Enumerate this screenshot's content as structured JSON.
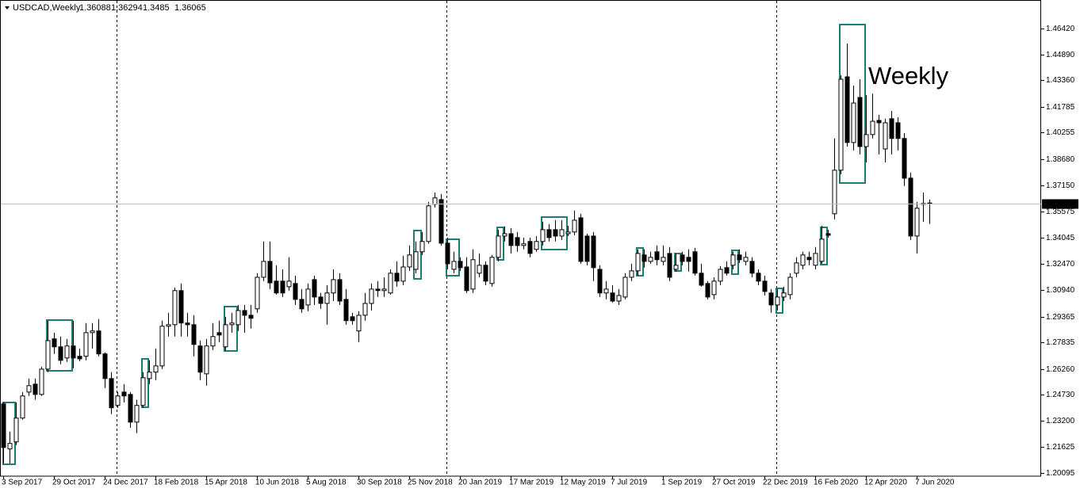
{
  "chart_data": {
    "type": "candlestick",
    "title": "USDCAD,Weekly",
    "annotation": "Weekly",
    "up_color": "#ffffff",
    "down_color": "#000000",
    "wick_color": "#000000",
    "annotation_color": "#1a7a1a",
    "ylim": [
      1.1991,
      1.4797
    ],
    "yticks": [
      {
        "value": 1.20095,
        "label": "1.20095"
      },
      {
        "value": 1.21625,
        "label": "1.21625"
      },
      {
        "value": 1.232,
        "label": "1.23200"
      },
      {
        "value": 1.2473,
        "label": "1.24730"
      },
      {
        "value": 1.2626,
        "label": "1.26260"
      },
      {
        "value": 1.27835,
        "label": "1.27835"
      },
      {
        "value": 1.29365,
        "label": "1.29365"
      },
      {
        "value": 1.3094,
        "label": "1.30940"
      },
      {
        "value": 1.3247,
        "label": "1.32470"
      },
      {
        "value": 1.34045,
        "label": "1.34045"
      },
      {
        "value": 1.35575,
        "label": "1.35575"
      },
      {
        "value": 1.3715,
        "label": "1.37150"
      },
      {
        "value": 1.3868,
        "label": "1.38680"
      },
      {
        "value": 1.40255,
        "label": "1.40255"
      },
      {
        "value": 1.41785,
        "label": "1.41785"
      },
      {
        "value": 1.4336,
        "label": "1.43360"
      },
      {
        "value": 1.4489,
        "label": "1.44890"
      },
      {
        "value": 1.4642,
        "label": "1.46420"
      }
    ],
    "categories": [
      "3 Sep 2017",
      null,
      null,
      null,
      null,
      null,
      null,
      null,
      "29 Oct 2017",
      null,
      null,
      null,
      null,
      null,
      null,
      null,
      "24 Dec 2017",
      null,
      null,
      null,
      null,
      null,
      null,
      null,
      "18 Feb 2018",
      null,
      null,
      null,
      null,
      null,
      null,
      null,
      "15 Apr 2018",
      null,
      null,
      null,
      null,
      null,
      null,
      null,
      "10 Jun 2018",
      null,
      null,
      null,
      null,
      null,
      null,
      null,
      "5 Aug 2018",
      null,
      null,
      null,
      null,
      null,
      null,
      null,
      "30 Sep 2018",
      null,
      null,
      null,
      null,
      null,
      null,
      null,
      "25 Nov 2018",
      null,
      null,
      null,
      null,
      null,
      null,
      null,
      "20 Jan 2019",
      null,
      null,
      null,
      null,
      null,
      null,
      null,
      "17 Mar 2019",
      null,
      null,
      null,
      null,
      null,
      null,
      null,
      "12 May 2019",
      null,
      null,
      null,
      null,
      null,
      null,
      null,
      "7 Jul 2019",
      null,
      null,
      null,
      null,
      null,
      null,
      null,
      "1 Sep 2019",
      null,
      null,
      null,
      null,
      null,
      null,
      null,
      "27 Oct 2019",
      null,
      null,
      null,
      null,
      null,
      null,
      null,
      "22 Dec 2019",
      null,
      null,
      null,
      null,
      null,
      null,
      null,
      "16 Feb 2020",
      null,
      null,
      null,
      null,
      null,
      null,
      null,
      "12 Apr 2020",
      null,
      null,
      null,
      null,
      null,
      null,
      null,
      "7 Jun 2020",
      null,
      null
    ],
    "open": [
      1.2419,
      1.2152,
      1.2194,
      1.2335,
      1.2489,
      1.2536,
      1.2475,
      1.2625,
      1.2804,
      1.2757,
      1.2691,
      1.2762,
      1.2701,
      1.2701,
      1.2841,
      1.2851,
      1.2715,
      1.2569,
      1.241,
      1.2489,
      1.2475,
      1.2311,
      1.241,
      1.2569,
      1.2607,
      1.2644,
      1.2879,
      1.2888,
      1.309,
      1.2898,
      1.2888,
      1.2762,
      1.2597,
      1.2762,
      1.2841,
      1.2757,
      1.2888,
      1.2888,
      1.2972,
      1.2944,
      1.2982,
      1.3169,
      1.3263,
      1.3146,
      1.3146,
      1.3113,
      1.3132,
      1.3038,
      1.3005,
      1.3155,
      1.3052,
      1.3014,
      1.3076,
      1.3155,
      1.3038,
      1.2935,
      1.2851,
      1.2944,
      1.3014,
      1.3099,
      1.309,
      1.3076,
      1.3193,
      1.3146,
      1.323,
      1.3216,
      1.332,
      1.3381,
      1.3601,
      1.3629,
      1.3371,
      1.3216,
      1.3263,
      1.323,
      1.3099,
      1.3193,
      1.324,
      1.3132,
      1.3287,
      1.3413,
      1.3427,
      1.3404,
      1.3357,
      1.3381,
      1.3334,
      1.3381,
      1.3451,
      1.3451,
      1.3413,
      1.3427,
      1.3437,
      1.3521,
      1.3413,
      1.3413,
      1.3216,
      1.3076,
      1.3076,
      1.3028,
      1.3052,
      1.3169,
      1.3207,
      1.3301,
      1.3263,
      1.332,
      1.3263,
      1.331,
      1.3216,
      1.3301,
      1.3287,
      1.332,
      1.3193,
      1.3132,
      1.3066,
      1.3146,
      1.3226,
      1.324,
      1.3301,
      1.3263,
      1.3263,
      1.3193,
      1.3146,
      1.3076,
      1.3005,
      1.3052,
      1.3066,
      1.3193,
      1.324,
      1.3287,
      1.324,
      1.3263,
      1.3427,
      1.3545,
      1.3803,
      1.4356,
      1.3967,
      1.4234,
      1.3943,
      1.4014,
      1.4098,
      1.3929,
      1.4108,
      1.4084,
      1.3991,
      1.3756,
      1.3413,
      1.3601,
      1.36088
    ],
    "high": [
      1.2428,
      1.2255,
      1.2428,
      1.2489,
      1.2569,
      1.2569,
      1.2639,
      1.2912,
      1.2841,
      1.2818,
      1.2804,
      1.2912,
      1.2747,
      1.2898,
      1.2898,
      1.2921,
      1.2724,
      1.2607,
      1.2489,
      1.2536,
      1.2489,
      1.2443,
      1.2607,
      1.2677,
      1.2747,
      1.2912,
      1.2958,
      1.3108,
      1.3132,
      1.2958,
      1.2944,
      1.2794,
      1.2804,
      1.2898,
      1.2912,
      1.2935,
      1.2958,
      1.3005,
      1.3005,
      1.3005,
      1.3193,
      1.3381,
      1.3381,
      1.324,
      1.3216,
      1.3287,
      1.3179,
      1.3099,
      1.3132,
      1.3179,
      1.3076,
      1.3122,
      1.3216,
      1.3193,
      1.3099,
      1.2958,
      1.2968,
      1.3076,
      1.3132,
      1.3146,
      1.3169,
      1.3216,
      1.3263,
      1.3296,
      1.3357,
      1.3381,
      1.3437,
      1.3615,
      1.3671,
      1.3662,
      1.3404,
      1.332,
      1.3287,
      1.3287,
      1.3334,
      1.331,
      1.3263,
      1.3301,
      1.3451,
      1.347,
      1.346,
      1.3437,
      1.3404,
      1.3404,
      1.3413,
      1.3498,
      1.3484,
      1.3507,
      1.3507,
      1.3474,
      1.3564,
      1.3545,
      1.3427,
      1.3437,
      1.324,
      1.3146,
      1.3122,
      1.3099,
      1.3193,
      1.3249,
      1.3334,
      1.3334,
      1.332,
      1.3357,
      1.3357,
      1.3348,
      1.331,
      1.332,
      1.3334,
      1.3343,
      1.3249,
      1.3146,
      1.3169,
      1.3235,
      1.3263,
      1.332,
      1.3334,
      1.332,
      1.3287,
      1.3216,
      1.3179,
      1.3099,
      1.3099,
      1.3113,
      1.3193,
      1.3287,
      1.332,
      1.332,
      1.3348,
      1.3474,
      1.3451,
      1.3991,
      1.4365,
      1.4553,
      1.4304,
      1.4342,
      1.4248,
      1.4257,
      1.4131,
      1.4108,
      1.4154,
      1.4117,
      1.4023,
      1.3789,
      1.3615,
      1.3671,
      1.36294
    ],
    "low": [
      1.2067,
      1.2067,
      1.2175,
      1.2325,
      1.2466,
      1.2443,
      1.2466,
      1.2607,
      1.2715,
      1.2654,
      1.2668,
      1.263,
      1.2672,
      1.2677,
      1.2747,
      1.2701,
      1.2513,
      1.2358,
      1.2396,
      1.2428,
      1.2278,
      1.2246,
      1.2396,
      1.2536,
      1.256,
      1.2625,
      1.2818,
      1.2818,
      1.2818,
      1.2818,
      1.2701,
      1.256,
      1.2527,
      1.2738,
      1.2785,
      1.2733,
      1.2841,
      1.2851,
      1.2841,
      1.2865,
      1.2958,
      1.3146,
      1.3099,
      1.3066,
      1.3052,
      1.309,
      1.3005,
      1.2958,
      1.2968,
      1.3005,
      1.2982,
      1.2888,
      1.3028,
      1.3005,
      1.2888,
      1.2888,
      1.2785,
      1.2912,
      1.2972,
      1.3052,
      1.3052,
      1.3066,
      1.3113,
      1.3122,
      1.3207,
      1.3193,
      1.3301,
      1.3367,
      1.3582,
      1.3357,
      1.3216,
      1.3193,
      1.3207,
      1.3076,
      1.3076,
      1.3169,
      1.3122,
      1.3113,
      1.3263,
      1.3381,
      1.331,
      1.332,
      1.3334,
      1.3287,
      1.332,
      1.3357,
      1.3381,
      1.3381,
      1.339,
      1.3413,
      1.3418,
      1.3249,
      1.324,
      1.3146,
      1.3052,
      1.3038,
      1.3019,
      1.3005,
      1.3038,
      1.3146,
      1.3179,
      1.3226,
      1.3249,
      1.324,
      1.324,
      1.3146,
      1.3202,
      1.324,
      1.3202,
      1.3179,
      1.3113,
      1.3038,
      1.3038,
      1.3122,
      1.3179,
      1.3216,
      1.3254,
      1.324,
      1.3169,
      1.3122,
      1.3061,
      1.2958,
      1.2972,
      1.3028,
      1.3038,
      1.3169,
      1.3216,
      1.324,
      1.3216,
      1.3249,
      1.3404,
      1.3512,
      1.3779,
      1.3943,
      1.392,
      1.3896,
      1.3849,
      1.3991,
      1.3896,
      1.3849,
      1.3896,
      1.392,
      1.3709,
      1.339,
      1.331,
      1.3498,
      1.3485
    ],
    "close": [
      1.2161,
      1.2185,
      1.2335,
      1.2466,
      1.2527,
      1.2475,
      1.2625,
      1.2794,
      1.2757,
      1.2677,
      1.2762,
      1.2691,
      1.2686,
      1.2841,
      1.2851,
      1.2715,
      1.2569,
      1.2396,
      1.2466,
      1.2466,
      1.2311,
      1.241,
      1.2574,
      1.2607,
      1.2644,
      1.2879,
      1.2888,
      1.309,
      1.2898,
      1.2888,
      1.2771,
      1.2607,
      1.2762,
      1.2818,
      1.2827,
      1.2888,
      1.2898,
      1.2972,
      1.2944,
      1.2926,
      1.3169,
      1.3263,
      1.3136,
      1.3076,
      1.3076,
      1.3146,
      1.3038,
      1.2982,
      1.3099,
      1.3052,
      1.3014,
      1.3076,
      1.3155,
      1.3028,
      1.2912,
      1.2912,
      1.2944,
      1.3014,
      1.3099,
      1.309,
      1.3099,
      1.3193,
      1.3146,
      1.323,
      1.3301,
      1.332,
      1.3381,
      1.3592,
      1.3639,
      1.3371,
      1.3249,
      1.3263,
      1.3226,
      1.309,
      1.3273,
      1.324,
      1.3146,
      1.3287,
      1.3413,
      1.3427,
      1.3357,
      1.3357,
      1.3367,
      1.331,
      1.3381,
      1.3451,
      1.3404,
      1.3413,
      1.3451,
      1.3437,
      1.3507,
      1.3263,
      1.3263,
      1.3226,
      1.3076,
      1.3099,
      1.3028,
      1.3061,
      1.3169,
      1.3207,
      1.331,
      1.3263,
      1.3287,
      1.3273,
      1.3287,
      1.3169,
      1.324,
      1.3263,
      1.3263,
      1.3193,
      1.3122,
      1.3052,
      1.3146,
      1.3216,
      1.3193,
      1.3301,
      1.3273,
      1.3287,
      1.3193,
      1.3146,
      1.3085,
      1.3005,
      1.3052,
      1.3076,
      1.3169,
      1.3254,
      1.3301,
      1.3273,
      1.331,
      1.3395,
      1.3418,
      1.3803,
      1.4342,
      1.3967,
      1.4201,
      1.3943,
      1.4014,
      1.4093,
      1.4084,
      1.4084,
      1.3991,
      1.3991,
      1.3756,
      1.3413,
      1.3578,
      1.3606,
      1.36065
    ]
  }
}
